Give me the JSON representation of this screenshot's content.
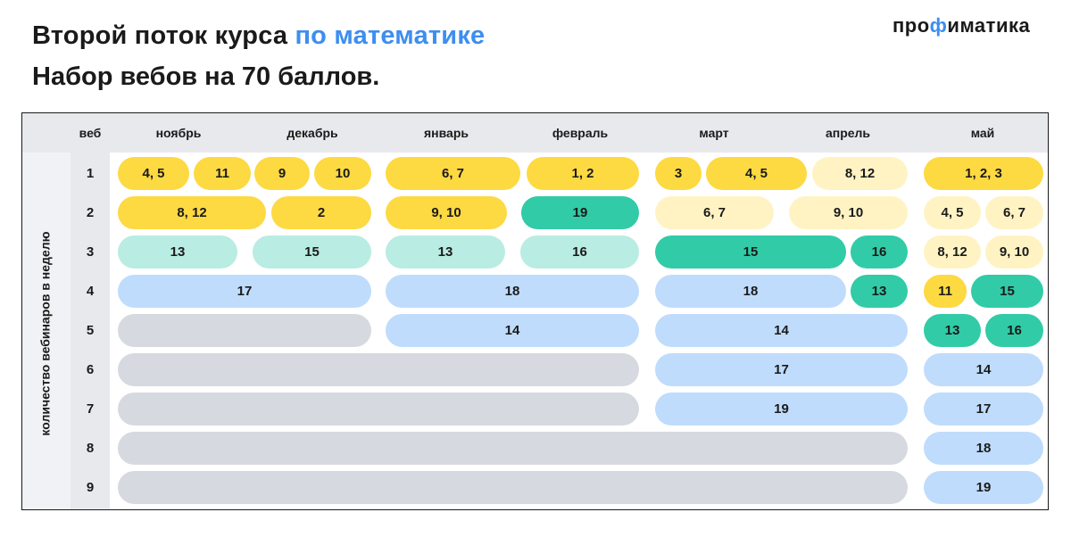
{
  "header": {
    "title_part1": "Второй поток курса ",
    "title_accent": "по математике",
    "subtitle": "Набор вебов на 70 баллов.",
    "logo_pre": "про",
    "logo_phi": "ф",
    "logo_post": "иматика"
  },
  "colors": {
    "yellow": "#fdd942",
    "light_yellow": "#fff3c4",
    "teal": "#31cba7",
    "mint": "#b9ece2",
    "blue": "#bfdcfc",
    "gray": "#d6d9df",
    "accent": "#3d8ef0"
  },
  "table": {
    "web_header": "веб",
    "side_label": "количество вебинаров в неделю",
    "months": [
      "ноябрь",
      "декабрь",
      "январь",
      "февраль",
      "март",
      "апрель",
      "май"
    ],
    "rows": [
      "1",
      "2",
      "3",
      "4",
      "5",
      "6",
      "7",
      "8",
      "9"
    ],
    "cells": {
      "r1": [
        "4, 5",
        "11",
        "9",
        "10",
        "6, 7",
        "1, 2",
        "3",
        "4, 5",
        "8, 12",
        "1, 2, 3"
      ],
      "r2": [
        "8, 12",
        "2",
        "9, 10",
        "19",
        "6, 7",
        "9, 10",
        "4, 5",
        "6, 7"
      ],
      "r3": [
        "13",
        "15",
        "13",
        "16",
        "15",
        "16",
        "8, 12",
        "9, 10"
      ],
      "r4": [
        "17",
        "18",
        "18",
        "13",
        "11",
        "15"
      ],
      "r5": [
        "14",
        "14",
        "13",
        "16"
      ],
      "r6": [
        "17",
        "14"
      ],
      "r7": [
        "19",
        "17"
      ],
      "r8": [
        "18"
      ],
      "r9": [
        "19"
      ]
    }
  }
}
